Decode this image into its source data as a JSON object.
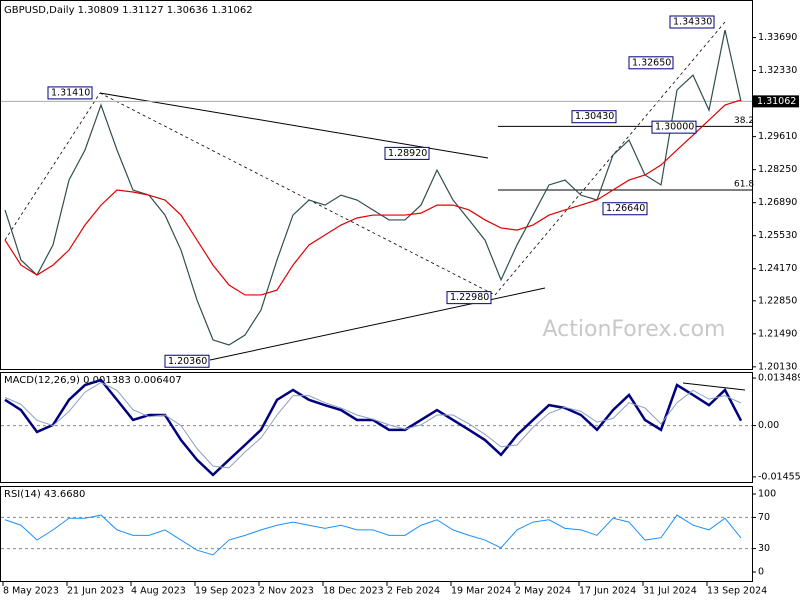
{
  "chart_data": [
    {
      "type": "line",
      "title": "GBPUSD,Daily 1.30809 1.31127 1.30636 1.31062",
      "ylim": [
        1.2,
        1.3503
      ],
      "yticks": [
        {
          "value": 1.3369,
          "label": "1.33690"
        },
        {
          "value": 1.3233,
          "label": "1.32330"
        },
        {
          "value": 1.2961,
          "label": "1.29610"
        },
        {
          "value": 1.2825,
          "label": "1.28250"
        },
        {
          "value": 1.2689,
          "label": "1.26890"
        },
        {
          "value": 1.2553,
          "label": "1.25530"
        },
        {
          "value": 1.2417,
          "label": "1.24170"
        },
        {
          "value": 1.2285,
          "label": "1.22850"
        },
        {
          "value": 1.2149,
          "label": "1.21490"
        },
        {
          "value": 1.2013,
          "label": "1.20130"
        }
      ],
      "current_price": 1.31062,
      "series": [
        {
          "name": "GBPUSD",
          "color": "#2f4f4f",
          "values": [
            1.2659,
            1.2453,
            1.2391,
            1.2515,
            1.2782,
            1.2906,
            1.3091,
            1.2906,
            1.2741,
            1.272,
            1.2638,
            1.2494,
            1.2288,
            1.2124,
            1.2103,
            1.2144,
            1.2247,
            1.2453,
            1.2638,
            1.27,
            1.2679,
            1.272,
            1.27,
            1.2659,
            1.2618,
            1.2618,
            1.2679,
            1.2823,
            1.27,
            1.2618,
            1.2535,
            1.2371,
            1.2515,
            1.2638,
            1.2762,
            1.2782,
            1.272,
            1.27,
            1.2885,
            1.2947,
            1.2803,
            1.2762,
            1.3153,
            1.3214,
            1.307,
            1.34,
            1.3106
          ]
        },
        {
          "name": "MA",
          "color": "#e00000",
          "values": [
            1.2535,
            1.2432,
            1.2391,
            1.2432,
            1.2494,
            1.2597,
            1.2679,
            1.2741,
            1.2733,
            1.272,
            1.27,
            1.2638,
            1.2535,
            1.2432,
            1.235,
            1.2309,
            1.2309,
            1.2329,
            1.2432,
            1.2515,
            1.2556,
            1.2597,
            1.2626,
            1.2638,
            1.2638,
            1.2638,
            1.2646,
            1.2679,
            1.2679,
            1.2659,
            1.2618,
            1.2585,
            1.2576,
            1.2597,
            1.2638,
            1.2659,
            1.2679,
            1.27,
            1.2741,
            1.2782,
            1.2803,
            1.2844,
            1.2906,
            1.2967,
            1.3029,
            1.3091,
            1.3112
          ]
        }
      ],
      "annotations": [
        {
          "text": "1.31410",
          "value": 1.3141
        },
        {
          "text": "1.20360",
          "value": 1.2036
        },
        {
          "text": "1.28920",
          "value": 1.2892
        },
        {
          "text": "1.22980",
          "value": 1.2298
        },
        {
          "text": "1.30430",
          "value": 1.3043
        },
        {
          "text": "1.30000",
          "value": 1.3
        },
        {
          "text": "1.26640",
          "value": 1.2664
        },
        {
          "text": "1.32650",
          "value": 1.3265
        },
        {
          "text": "1.34330",
          "value": 1.3433
        }
      ],
      "levels": [
        {
          "label": "38.2",
          "value": 1.3003
        },
        {
          "label": "61.8",
          "value": 1.2741
        }
      ],
      "watermark": "ActionForex.com"
    },
    {
      "type": "line",
      "title": "MACD(12,26,9) 0.001383 0.006407",
      "ylim": [
        -0.016,
        0.0152
      ],
      "yticks": [
        0.013489,
        {
          "value": 0,
          "label": "0.00"
        },
        -0.014554
      ],
      "series": [
        {
          "name": "MACD",
          "color": "#000080",
          "values": [
            0.0073,
            0.0044,
            -0.0018,
            0.0002,
            0.0073,
            0.0115,
            0.0129,
            0.0073,
            0.0016,
            0.003,
            0.003,
            -0.0041,
            -0.0097,
            -0.014,
            -0.0097,
            -0.0055,
            -0.0012,
            0.0073,
            0.0101,
            0.0073,
            0.0058,
            0.0044,
            0.0016,
            0.0016,
            -0.0012,
            -0.0012,
            0.0016,
            0.0044,
            0.0016,
            -0.0012,
            -0.0041,
            -0.0083,
            -0.0027,
            0.0016,
            0.0058,
            0.005,
            0.003,
            -0.0012,
            0.0044,
            0.0087,
            0.0016,
            -0.0012,
            0.0115,
            0.0087,
            0.0058,
            0.0101,
            0.0014
          ]
        },
        {
          "name": "Signal",
          "color": "#8fa0c0",
          "values": [
            0.008,
            0.006,
            0.0015,
            0.0,
            0.004,
            0.0095,
            0.0122,
            0.01,
            0.0045,
            0.0025,
            0.003,
            0.0,
            -0.0065,
            -0.0115,
            -0.012,
            -0.0075,
            -0.0035,
            0.003,
            0.0085,
            0.0085,
            0.0065,
            0.005,
            0.003,
            0.0018,
            0.0002,
            -0.001,
            0.0002,
            0.003,
            0.003,
            0.0005,
            -0.0025,
            -0.006,
            -0.0055,
            -0.0005,
            0.0035,
            0.0052,
            0.004,
            0.001,
            0.002,
            0.0065,
            0.005,
            0.0005,
            0.0065,
            0.01,
            0.0075,
            0.0085,
            0.0064
          ]
        }
      ]
    },
    {
      "type": "line",
      "title": "RSI(14) 43.6680",
      "ylim": [
        -12.8,
        109
      ],
      "yticks": [
        100,
        70,
        30,
        0
      ],
      "grid_lines": [
        70,
        30
      ],
      "xticks": [
        {
          "value": 0,
          "label": "8 May 2023"
        },
        {
          "value": 4,
          "label": "21 Jun 2023"
        },
        {
          "value": 8,
          "label": "4 Aug 2023"
        },
        {
          "value": 12,
          "label": "19 Sep 2023"
        },
        {
          "value": 16,
          "label": "2 Nov 2023"
        },
        {
          "value": 20,
          "label": "18 Dec 2023"
        },
        {
          "value": 24,
          "label": "2 Feb 2024"
        },
        {
          "value": 28,
          "label": "19 Mar 2024"
        },
        {
          "value": 32,
          "label": "2 May 2024"
        },
        {
          "value": 36,
          "label": "17 Jun 2024"
        },
        {
          "value": 40,
          "label": "31 Jul 2024"
        },
        {
          "value": 44,
          "label": "13 Sep 2024"
        }
      ],
      "series": [
        {
          "name": "RSI",
          "color": "#1e90ff",
          "values": [
            67,
            60,
            41,
            54,
            69,
            69,
            73,
            54,
            47,
            47,
            54,
            41,
            28,
            22,
            41,
            47,
            54,
            60,
            64,
            60,
            56,
            60,
            54,
            54,
            47,
            47,
            60,
            67,
            54,
            47,
            41,
            31,
            54,
            64,
            67,
            56,
            54,
            47,
            69,
            64,
            41,
            44,
            73,
            60,
            54,
            69,
            43.67
          ]
        }
      ]
    }
  ]
}
